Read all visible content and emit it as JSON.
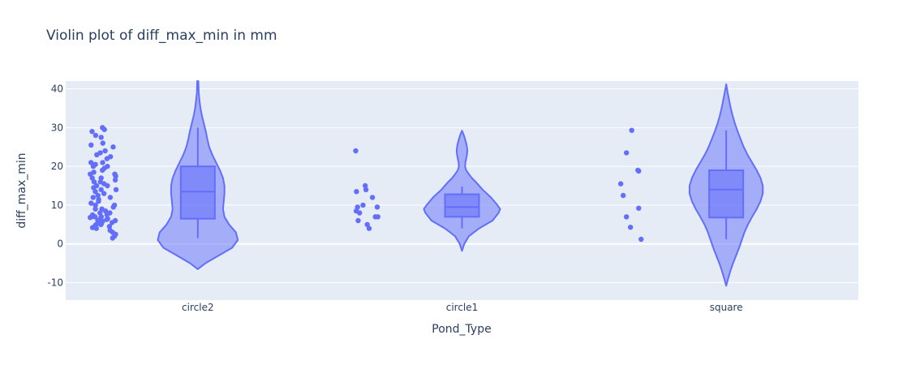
{
  "chart_data": {
    "type": "violin",
    "title": "Violin plot of diff_max_min in mm",
    "xlabel": "Pond_Type",
    "ylabel": "diff_max_min",
    "ylim": [
      -14.5,
      42
    ],
    "yticks": [
      -10,
      0,
      10,
      20,
      30,
      40
    ],
    "grid": true,
    "categories": [
      "circle2",
      "circle1",
      "square"
    ],
    "series": [
      {
        "category": "circle2",
        "box": {
          "min": 1.5,
          "q1": 6.5,
          "median": 13.5,
          "q3": 20,
          "max": 30
        },
        "violin": {
          "ymin": -6.5,
          "ymax": 42,
          "profile": [
            [
              -6.5,
              0
            ],
            [
              -5,
              0.2
            ],
            [
              -3,
              0.55
            ],
            [
              -1,
              0.9
            ],
            [
              1,
              1.05
            ],
            [
              3,
              1.0
            ],
            [
              5,
              0.82
            ],
            [
              7,
              0.7
            ],
            [
              9,
              0.66
            ],
            [
              11,
              0.68
            ],
            [
              13,
              0.7
            ],
            [
              15,
              0.7
            ],
            [
              17,
              0.66
            ],
            [
              19,
              0.58
            ],
            [
              21,
              0.48
            ],
            [
              23,
              0.38
            ],
            [
              25,
              0.3
            ],
            [
              27,
              0.25
            ],
            [
              29,
              0.21
            ],
            [
              31,
              0.16
            ],
            [
              33,
              0.11
            ],
            [
              35,
              0.07
            ],
            [
              37,
              0.045
            ],
            [
              39,
              0.025
            ],
            [
              42,
              0.015
            ]
          ]
        },
        "points": [
          30,
          29.5,
          29,
          28,
          27.5,
          26,
          25.5,
          25,
          24,
          23.5,
          23,
          22.5,
          22,
          21,
          21,
          20.5,
          20,
          20,
          19.5,
          19,
          18.5,
          18,
          18,
          17.5,
          17,
          17,
          16.5,
          16,
          16,
          15.5,
          15,
          15,
          14.5,
          14,
          14,
          13.5,
          13,
          12.5,
          12,
          12,
          11.5,
          11,
          10.5,
          10,
          10,
          9.5,
          9,
          9,
          8.5,
          8,
          8,
          7.5,
          7.5,
          7,
          7,
          7,
          6.8,
          6.5,
          6.5,
          6.3,
          6,
          6,
          6,
          5.8,
          5.5,
          5.5,
          5.2,
          5,
          5,
          4.8,
          4.5,
          4.2,
          4,
          3.5,
          3,
          2.5,
          2,
          1.5
        ]
      },
      {
        "category": "circle1",
        "box": {
          "min": 4,
          "q1": 7,
          "median": 9.5,
          "q3": 12.8,
          "max": 14.8
        },
        "violin": {
          "ymin": -1.8,
          "ymax": 29.2,
          "profile": [
            [
              -1.8,
              0
            ],
            [
              0,
              0.06
            ],
            [
              2,
              0.18
            ],
            [
              4,
              0.45
            ],
            [
              6,
              0.8
            ],
            [
              8,
              0.96
            ],
            [
              9,
              1.0
            ],
            [
              10,
              0.93
            ],
            [
              12,
              0.76
            ],
            [
              14,
              0.54
            ],
            [
              16,
              0.36
            ],
            [
              17,
              0.26
            ],
            [
              18,
              0.18
            ],
            [
              19,
              0.11
            ],
            [
              20,
              0.08
            ],
            [
              21,
              0.09
            ],
            [
              22,
              0.11
            ],
            [
              23,
              0.13
            ],
            [
              24,
              0.14
            ],
            [
              25,
              0.13
            ],
            [
              26,
              0.11
            ],
            [
              27,
              0.08
            ],
            [
              28,
              0.05
            ],
            [
              29.2,
              0
            ]
          ]
        },
        "points": [
          24,
          15,
          14,
          13.5,
          12,
          10,
          9.5,
          9.5,
          8.5,
          8,
          7,
          7,
          6,
          5,
          4
        ]
      },
      {
        "category": "square",
        "box": {
          "min": 1.2,
          "q1": 6.8,
          "median": 14,
          "q3": 19,
          "max": 29.3
        },
        "violin": {
          "ymin": -10.8,
          "ymax": 41.2,
          "profile": [
            [
              -10.8,
              0
            ],
            [
              -9,
              0.05
            ],
            [
              -7,
              0.11
            ],
            [
              -5,
              0.18
            ],
            [
              -3,
              0.26
            ],
            [
              -1,
              0.34
            ],
            [
              1,
              0.41
            ],
            [
              3,
              0.48
            ],
            [
              5,
              0.57
            ],
            [
              7,
              0.68
            ],
            [
              9,
              0.8
            ],
            [
              11,
              0.9
            ],
            [
              13,
              0.96
            ],
            [
              15,
              0.96
            ],
            [
              17,
              0.9
            ],
            [
              19,
              0.8
            ],
            [
              21,
              0.68
            ],
            [
              23,
              0.56
            ],
            [
              25,
              0.46
            ],
            [
              27,
              0.38
            ],
            [
              29,
              0.3
            ],
            [
              31,
              0.23
            ],
            [
              33,
              0.17
            ],
            [
              35,
              0.12
            ],
            [
              37,
              0.08
            ],
            [
              39,
              0.04
            ],
            [
              41.2,
              0
            ]
          ]
        },
        "points": [
          29.3,
          23.5,
          19,
          18.8,
          15.5,
          12.5,
          9.2,
          7,
          4.3,
          1.2
        ]
      }
    ]
  }
}
